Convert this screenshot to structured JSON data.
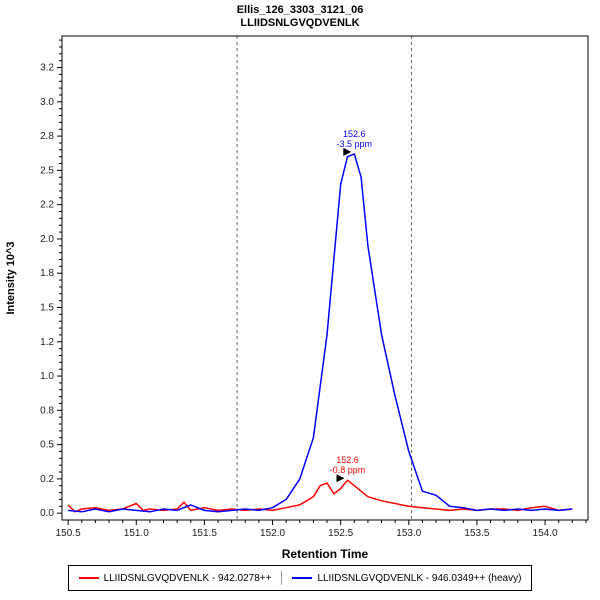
{
  "chart_data": {
    "type": "line",
    "title": "Ellis_126_3303_3121_06",
    "subtitle": "LLIIDSNLGVQDVENLK",
    "xlabel": "Retention Time",
    "ylabel": "Intensity 10^3",
    "xlim": [
      150.455,
      154.315
    ],
    "ylim": [
      -0.05,
      3.48
    ],
    "grid": false,
    "legend_position": "bottom",
    "x_ticks": [
      {
        "v": 150.5,
        "t": "150.5"
      },
      {
        "v": 151.0,
        "t": "151.0"
      },
      {
        "v": 151.5,
        "t": "151.5"
      },
      {
        "v": 152.0,
        "t": "152.0"
      },
      {
        "v": 152.5,
        "t": "152.5"
      },
      {
        "v": 153.0,
        "t": "153.0"
      },
      {
        "v": 153.5,
        "t": "153.5"
      },
      {
        "v": 154.0,
        "t": "154.0"
      }
    ],
    "y_ticks": [
      {
        "v": 0.0,
        "t": "0.0"
      },
      {
        "v": 0.25,
        "t": "0.2"
      },
      {
        "v": 0.5,
        "t": "0.5"
      },
      {
        "v": 0.75,
        "t": "0.8"
      },
      {
        "v": 1.0,
        "t": "1.0"
      },
      {
        "v": 1.25,
        "t": "1.2"
      },
      {
        "v": 1.5,
        "t": "1.5"
      },
      {
        "v": 1.75,
        "t": "1.8"
      },
      {
        "v": 2.0,
        "t": "2.0"
      },
      {
        "v": 2.25,
        "t": "2.2"
      },
      {
        "v": 2.5,
        "t": "2.5"
      },
      {
        "v": 2.75,
        "t": "2.8"
      },
      {
        "v": 3.0,
        "t": "3.0"
      },
      {
        "v": 3.25,
        "t": "3.2"
      }
    ],
    "integration_boundaries": [
      151.74,
      153.02
    ],
    "boundary_color": "#666666",
    "series": [
      {
        "name": "LLIIDSNLGVQDVENLK - 942.0278++",
        "color": "#ff0000",
        "x": [
          150.5,
          150.55,
          150.6,
          150.7,
          150.8,
          150.9,
          151.0,
          151.05,
          151.1,
          151.2,
          151.3,
          151.35,
          151.4,
          151.5,
          151.6,
          151.7,
          151.8,
          151.9,
          152.0,
          152.1,
          152.2,
          152.3,
          152.35,
          152.4,
          152.45,
          152.5,
          152.55,
          152.6,
          152.7,
          152.8,
          152.9,
          153.0,
          153.1,
          153.2,
          153.3,
          153.4,
          153.5,
          153.6,
          153.7,
          153.8,
          153.9,
          154.0,
          154.1,
          154.2
        ],
        "y": [
          0.06,
          0.01,
          0.03,
          0.04,
          0.02,
          0.03,
          0.07,
          0.02,
          0.03,
          0.02,
          0.03,
          0.08,
          0.02,
          0.04,
          0.02,
          0.03,
          0.02,
          0.03,
          0.02,
          0.04,
          0.06,
          0.12,
          0.2,
          0.22,
          0.14,
          0.18,
          0.24,
          0.2,
          0.12,
          0.09,
          0.07,
          0.05,
          0.04,
          0.03,
          0.02,
          0.03,
          0.02,
          0.03,
          0.03,
          0.02,
          0.04,
          0.05,
          0.02,
          0.03
        ]
      },
      {
        "name": "LLIIDSNLGVQDVENLK - 946.0349++ (heavy)",
        "color": "#0000ff",
        "x": [
          150.5,
          150.6,
          150.7,
          150.8,
          150.9,
          151.0,
          151.1,
          151.2,
          151.3,
          151.4,
          151.5,
          151.6,
          151.7,
          151.8,
          151.9,
          152.0,
          152.1,
          152.2,
          152.3,
          152.4,
          152.5,
          152.55,
          152.6,
          152.65,
          152.7,
          152.8,
          152.9,
          153.0,
          153.1,
          153.2,
          153.3,
          153.4,
          153.5,
          153.6,
          153.7,
          153.8,
          153.9,
          154.0,
          154.1,
          154.2
        ],
        "y": [
          0.02,
          0.01,
          0.03,
          0.01,
          0.03,
          0.02,
          0.01,
          0.03,
          0.02,
          0.06,
          0.02,
          0.01,
          0.02,
          0.03,
          0.02,
          0.04,
          0.1,
          0.25,
          0.55,
          1.3,
          2.4,
          2.6,
          2.62,
          2.45,
          1.95,
          1.3,
          0.85,
          0.45,
          0.16,
          0.13,
          0.05,
          0.04,
          0.02,
          0.03,
          0.02,
          0.03,
          0.02,
          0.03,
          0.02,
          0.03
        ]
      }
    ],
    "annotations": [
      {
        "label": "152.6",
        "ppm": "-3.5 ppm",
        "x": 152.6,
        "y": 2.62,
        "color": "#0000ff"
      },
      {
        "label": "152.6",
        "ppm": "-0.8 ppm",
        "x": 152.55,
        "y": 0.24,
        "color": "#ff0000"
      }
    ],
    "legend": [
      "LLIIDSNLGVQDVENLK - 942.0278++",
      "LLIIDSNLGVQDVENLK - 946.0349++ (heavy)"
    ]
  }
}
